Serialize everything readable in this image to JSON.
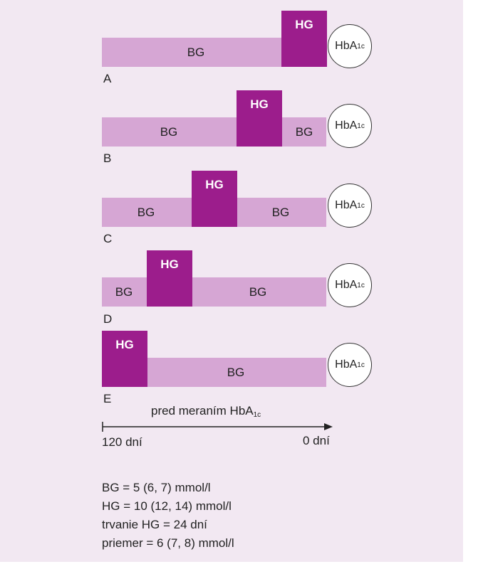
{
  "hba1c": {
    "main": "HbA",
    "sub": "1c"
  },
  "rows": [
    {
      "letter": "A",
      "segments": [
        "BG"
      ],
      "hg": "HG"
    },
    {
      "letter": "B",
      "segments": [
        "BG",
        "BG"
      ],
      "hg": "HG"
    },
    {
      "letter": "C",
      "segments": [
        "BG",
        "BG"
      ],
      "hg": "HG"
    },
    {
      "letter": "D",
      "segments": [
        "BG",
        "BG"
      ],
      "hg": "HG"
    },
    {
      "letter": "E",
      "segments": [
        "BG"
      ],
      "hg": "HG"
    }
  ],
  "axis": {
    "title": "pred meraním HbA",
    "title_sub": "1c",
    "left_label": "120 dní",
    "right_label": "0 dní"
  },
  "legend": [
    "BG = 5 (6, 7) mmol/l",
    "HG = 10 (12, 14) mmol/l",
    "trvanie HG = 24 dní",
    "priemer = 6 (7, 8) mmol/l"
  ],
  "colors": {
    "background": "#f2e8f2",
    "bg_bar": "#d6a6d4",
    "hg_box": "#9c1d8c"
  }
}
